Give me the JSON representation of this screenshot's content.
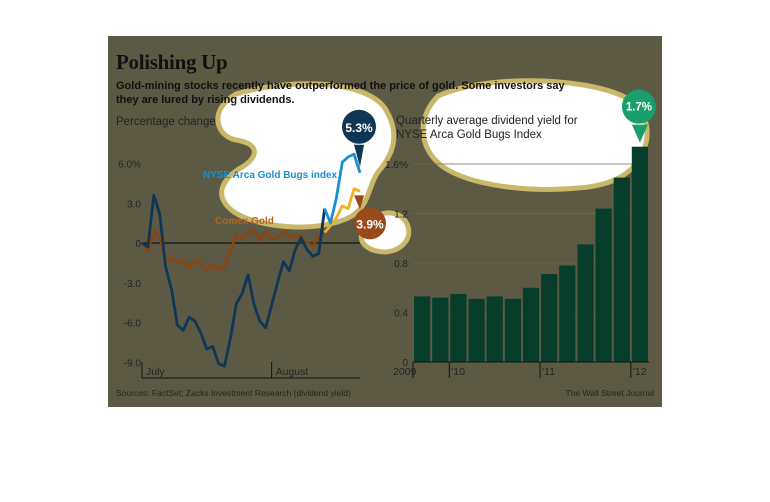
{
  "header": {
    "title": "Polishing Up",
    "subtitle": "Gold-mining stocks recently have outperformed the price of gold. Some investors say they are lured by rising dividends."
  },
  "footer": {
    "sources": "Sources: FactSet; Zacks Investment Research (dividend yield)",
    "credit": "The Wall Street Journal"
  },
  "colors": {
    "background": "#5c5a45",
    "gold_bugs_dark": "#0f3655",
    "gold_bugs_light": "#1a8fd0",
    "comex_dark": "#8b4513",
    "comex_light": "#f0b020",
    "bars": "#073d2b",
    "callout_yield": "#1a9e6b"
  },
  "chart_data": [
    {
      "type": "line",
      "ylabel": "Percentage change",
      "ylim": [
        -9.6,
        7.2
      ],
      "yticks": [
        "6.0%",
        "3.0",
        "0",
        "-3.0",
        "-6.0",
        "-9.0"
      ],
      "ytick_values": [
        6,
        3,
        0,
        -3,
        -6,
        -9
      ],
      "x_labels": [
        "July",
        "August"
      ],
      "x_label_positions": [
        0,
        22
      ],
      "grid": false,
      "zero_line": true,
      "series": [
        {
          "name": "NYSE Arca Gold Bugs index",
          "end_label": "5.3%",
          "highlight_from": 31,
          "values": [
            0,
            -0.3,
            3.6,
            2.2,
            -1.8,
            -3.5,
            -6.2,
            -6.6,
            -5.6,
            -5.9,
            -6.8,
            -8.0,
            -7.8,
            -9.1,
            -9.3,
            -7.2,
            -4.6,
            -3.8,
            -2.4,
            -4.6,
            -5.9,
            -6.4,
            -4.7,
            -3.0,
            -1.4,
            -2.1,
            -0.5,
            0.4,
            -0.5,
            -1.0,
            -0.8,
            2.6,
            1.5,
            3.4,
            6.1,
            6.5,
            6.7,
            5.3
          ]
        },
        {
          "name": "Comex Gold",
          "end_label": "3.9%",
          "highlight_from": 31,
          "values": [
            0,
            -0.6,
            0.9,
            0.4,
            -1.4,
            -1.1,
            -1.5,
            -1.3,
            -1.9,
            -1.3,
            -1.5,
            -2.1,
            -1.6,
            -2.0,
            -1.8,
            -0.6,
            0.6,
            0.3,
            0.8,
            0.9,
            0.2,
            0.9,
            0.3,
            0.4,
            0.9,
            0.5,
            0.4,
            0.6,
            0.0,
            -0.2,
            0.5,
            0.8,
            1.3,
            1.9,
            2.8,
            2.6,
            4.1,
            3.9
          ]
        }
      ]
    },
    {
      "type": "bar",
      "title": "Quarterly average dividend yield for NYSE Arca Gold Bugs Index",
      "ylim": [
        0,
        1.85
      ],
      "yticks": [
        "1.6%",
        "1.2",
        "0.8",
        "0.4",
        "0"
      ],
      "ytick_values": [
        1.6,
        1.2,
        0.8,
        0.4,
        0
      ],
      "x_labels": [
        "2009",
        "'10",
        "'11",
        "'12"
      ],
      "x_label_index": [
        0,
        2,
        7,
        12
      ],
      "callout": "1.7%",
      "values": [
        0.53,
        0.52,
        0.55,
        0.51,
        0.53,
        0.51,
        0.6,
        0.71,
        0.78,
        0.95,
        1.24,
        1.49,
        1.74
      ]
    }
  ]
}
